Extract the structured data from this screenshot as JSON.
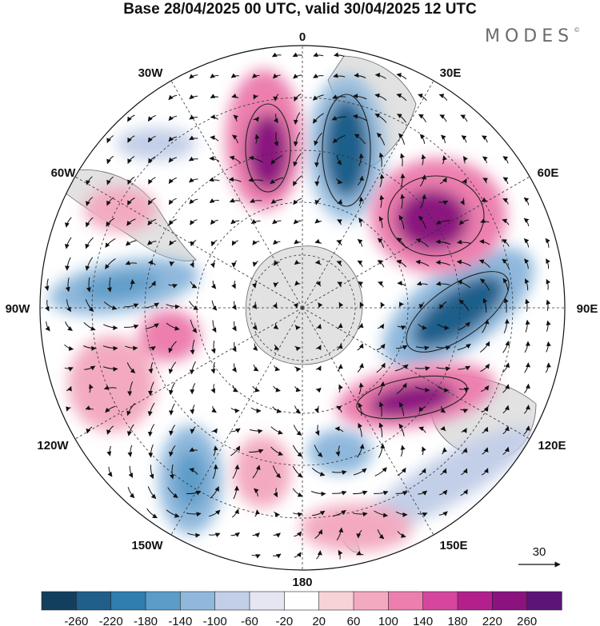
{
  "title": "Base 28/04/2025 00 UTC, valid 30/04/2025 12 UTC",
  "brand": "MODES",
  "brand_mark": "©",
  "longitude_labels": [
    "0",
    "30E",
    "60E",
    "90E",
    "120E",
    "150E",
    "180",
    "150W",
    "120W",
    "90W",
    "60W",
    "30W"
  ],
  "vector_reference": {
    "value": "30"
  },
  "colorbar": {
    "ticks": [
      "-260",
      "-220",
      "-180",
      "-140",
      "-100",
      "-60",
      "-20",
      "20",
      "60",
      "100",
      "140",
      "180",
      "220",
      "260"
    ],
    "colors": [
      "#123f5e",
      "#1f5f8a",
      "#2f7db1",
      "#5b9cc8",
      "#8fb8dc",
      "#c3cfe8",
      "#e6e6f3",
      "#ffffff",
      "#f7d3d7",
      "#f3aac0",
      "#ec7fae",
      "#d7469e",
      "#b41f8e",
      "#8a137f",
      "#5d1477"
    ]
  }
}
